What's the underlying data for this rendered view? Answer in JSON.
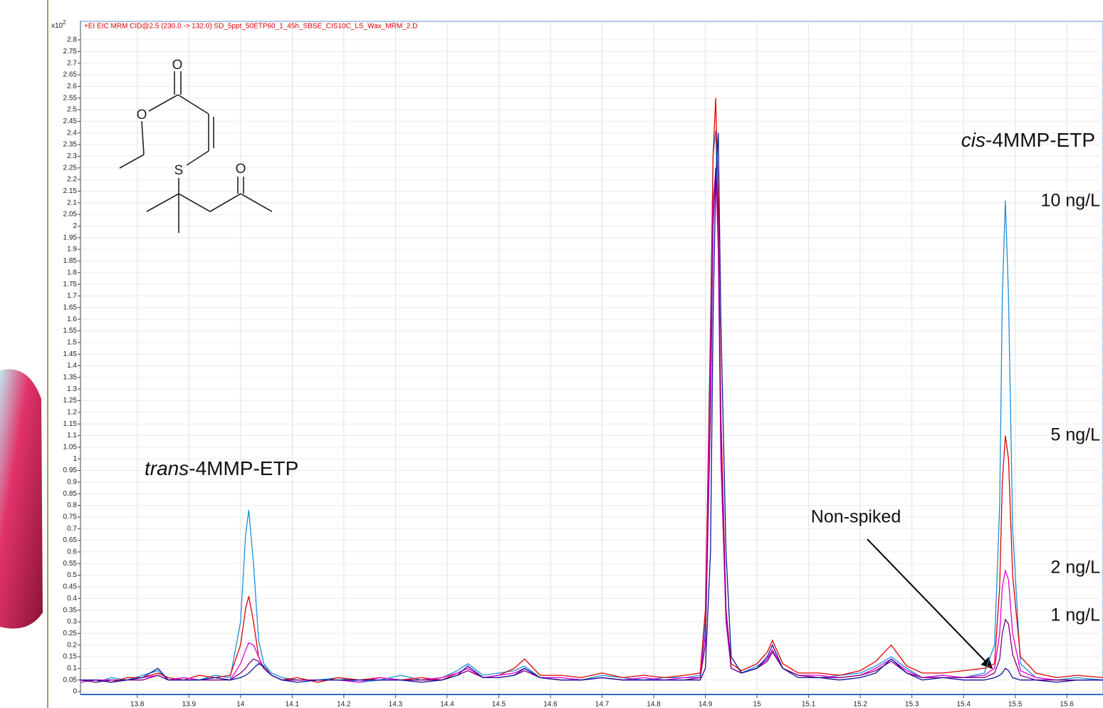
{
  "chart_data": {
    "type": "line",
    "title": "+EI EIC MRM CID@2.5 (230.0 -> 132.0) SD_5ppt_50ETP60_1_45h_SBSE_CIS10C_LS_Wax_MRM_2.D",
    "y_multiplier": {
      "base": "x10",
      "exponent": "2"
    },
    "annotations": [
      {
        "parts": [
          "trans",
          "-4MMP-ETP"
        ]
      },
      {
        "parts": [
          "cis",
          "-4MMP-ETP"
        ]
      }
    ],
    "structure_atoms": [
      "O",
      "O",
      "S",
      "O"
    ],
    "xlim": [
      13.69,
      15.67
    ],
    "xticks": [
      13.8,
      13.9,
      14,
      14.1,
      14.2,
      14.3,
      14.4,
      14.5,
      14.6,
      14.7,
      14.8,
      14.9,
      15,
      15.1,
      15.2,
      15.3,
      15.4,
      15.5,
      15.6
    ],
    "ylim": [
      0,
      2.8
    ],
    "yticks": [
      0,
      0.05,
      0.1,
      0.15,
      0.2,
      0.25,
      0.3,
      0.35,
      0.4,
      0.45,
      0.5,
      0.55,
      0.6,
      0.65,
      0.7,
      0.75,
      0.8,
      0.85,
      0.9,
      0.95,
      1,
      1.05,
      1.1,
      1.15,
      1.2,
      1.25,
      1.3,
      1.35,
      1.4,
      1.45,
      1.5,
      1.55,
      1.6,
      1.65,
      1.7,
      1.75,
      1.8,
      1.85,
      1.9,
      1.95,
      2,
      2.05,
      2.1,
      2.15,
      2.2,
      2.25,
      2.3,
      2.35,
      2.4,
      2.45,
      2.5,
      2.55,
      2.6,
      2.65,
      2.7,
      2.75,
      2.8
    ],
    "grid": true,
    "x": [
      13.69,
      13.72,
      13.75,
      13.78,
      13.81,
      13.84,
      13.86,
      13.89,
      13.92,
      13.95,
      13.98,
      14.0,
      14.01,
      14.016,
      14.025,
      14.035,
      14.045,
      14.06,
      14.08,
      14.11,
      14.15,
      14.19,
      14.23,
      14.27,
      14.31,
      14.35,
      14.39,
      14.42,
      14.44,
      14.47,
      14.5,
      14.53,
      14.55,
      14.58,
      14.62,
      14.66,
      14.7,
      14.74,
      14.78,
      14.82,
      14.86,
      14.89,
      14.9,
      14.91,
      14.915,
      14.92,
      14.925,
      14.93,
      14.94,
      14.95,
      14.97,
      15.0,
      15.02,
      15.03,
      15.05,
      15.08,
      15.12,
      15.16,
      15.2,
      15.23,
      15.26,
      15.29,
      15.32,
      15.36,
      15.4,
      15.44,
      15.46,
      15.47,
      15.475,
      15.481,
      15.487,
      15.495,
      15.51,
      15.54,
      15.58,
      15.62,
      15.67
    ],
    "series": [
      {
        "name": "10 ng/L",
        "color": "#1c8fd8",
        "values": [
          0.05,
          0.04,
          0.06,
          0.05,
          0.07,
          0.09,
          0.05,
          0.06,
          0.05,
          0.07,
          0.06,
          0.3,
          0.68,
          0.78,
          0.55,
          0.22,
          0.12,
          0.08,
          0.06,
          0.05,
          0.05,
          0.06,
          0.04,
          0.05,
          0.07,
          0.05,
          0.06,
          0.09,
          0.12,
          0.07,
          0.08,
          0.09,
          0.11,
          0.06,
          0.06,
          0.05,
          0.07,
          0.06,
          0.05,
          0.06,
          0.06,
          0.07,
          0.3,
          1.6,
          2.3,
          2.41,
          2.0,
          1.1,
          0.3,
          0.1,
          0.08,
          0.11,
          0.14,
          0.18,
          0.1,
          0.07,
          0.06,
          0.07,
          0.08,
          0.11,
          0.15,
          0.1,
          0.06,
          0.07,
          0.06,
          0.08,
          0.2,
          0.8,
          1.7,
          2.11,
          1.7,
          0.7,
          0.12,
          0.06,
          0.05,
          0.06,
          0.05
        ]
      },
      {
        "name": "5 ng/L",
        "color": "#e00000",
        "values": [
          0.05,
          0.05,
          0.04,
          0.06,
          0.06,
          0.08,
          0.06,
          0.05,
          0.07,
          0.06,
          0.07,
          0.2,
          0.36,
          0.41,
          0.3,
          0.15,
          0.1,
          0.07,
          0.05,
          0.06,
          0.04,
          0.06,
          0.05,
          0.06,
          0.05,
          0.06,
          0.05,
          0.08,
          0.1,
          0.06,
          0.07,
          0.1,
          0.14,
          0.07,
          0.07,
          0.06,
          0.08,
          0.06,
          0.07,
          0.06,
          0.07,
          0.08,
          0.35,
          1.5,
          2.3,
          2.55,
          2.1,
          1.2,
          0.35,
          0.12,
          0.09,
          0.12,
          0.17,
          0.22,
          0.12,
          0.08,
          0.08,
          0.07,
          0.09,
          0.13,
          0.2,
          0.11,
          0.08,
          0.08,
          0.09,
          0.1,
          0.12,
          0.45,
          0.9,
          1.1,
          1.0,
          0.5,
          0.15,
          0.08,
          0.06,
          0.07,
          0.06
        ]
      },
      {
        "name": "2 ng/L",
        "color": "#e000e0",
        "values": [
          0.04,
          0.05,
          0.05,
          0.05,
          0.06,
          0.07,
          0.05,
          0.06,
          0.05,
          0.06,
          0.05,
          0.12,
          0.18,
          0.21,
          0.2,
          0.15,
          0.1,
          0.07,
          0.05,
          0.05,
          0.05,
          0.05,
          0.04,
          0.06,
          0.05,
          0.05,
          0.06,
          0.08,
          0.1,
          0.06,
          0.07,
          0.08,
          0.1,
          0.06,
          0.06,
          0.05,
          0.06,
          0.05,
          0.06,
          0.05,
          0.06,
          0.06,
          0.25,
          1.4,
          2.1,
          2.24,
          1.9,
          1.0,
          0.3,
          0.1,
          0.08,
          0.1,
          0.14,
          0.18,
          0.1,
          0.07,
          0.07,
          0.06,
          0.07,
          0.1,
          0.14,
          0.09,
          0.06,
          0.07,
          0.06,
          0.07,
          0.1,
          0.25,
          0.45,
          0.52,
          0.48,
          0.25,
          0.09,
          0.06,
          0.05,
          0.05,
          0.05
        ]
      },
      {
        "name": "1 ng/L",
        "color": "#80007a",
        "values": [
          0.05,
          0.04,
          0.05,
          0.05,
          0.05,
          0.07,
          0.05,
          0.05,
          0.05,
          0.05,
          0.05,
          0.08,
          0.1,
          0.12,
          0.14,
          0.13,
          0.1,
          0.07,
          0.05,
          0.05,
          0.05,
          0.05,
          0.05,
          0.05,
          0.05,
          0.05,
          0.05,
          0.07,
          0.09,
          0.06,
          0.06,
          0.07,
          0.09,
          0.06,
          0.05,
          0.05,
          0.06,
          0.05,
          0.05,
          0.05,
          0.05,
          0.06,
          0.2,
          1.2,
          2.0,
          2.25,
          2.0,
          1.1,
          0.35,
          0.1,
          0.08,
          0.1,
          0.13,
          0.17,
          0.1,
          0.07,
          0.06,
          0.06,
          0.07,
          0.09,
          0.13,
          0.08,
          0.06,
          0.06,
          0.06,
          0.06,
          0.08,
          0.14,
          0.25,
          0.31,
          0.29,
          0.16,
          0.07,
          0.05,
          0.05,
          0.05,
          0.05
        ]
      },
      {
        "name": "Non-spiked",
        "color": "#12129c",
        "values": [
          0.05,
          0.05,
          0.04,
          0.05,
          0.06,
          0.1,
          0.05,
          0.05,
          0.05,
          0.06,
          0.05,
          0.06,
          0.07,
          0.08,
          0.1,
          0.12,
          0.11,
          0.07,
          0.05,
          0.04,
          0.05,
          0.05,
          0.05,
          0.05,
          0.05,
          0.04,
          0.05,
          0.07,
          0.11,
          0.06,
          0.06,
          0.07,
          0.1,
          0.06,
          0.05,
          0.05,
          0.06,
          0.05,
          0.05,
          0.05,
          0.05,
          0.05,
          0.1,
          0.6,
          1.6,
          2.2,
          2.4,
          1.6,
          0.6,
          0.15,
          0.08,
          0.1,
          0.15,
          0.2,
          0.1,
          0.06,
          0.06,
          0.05,
          0.06,
          0.08,
          0.14,
          0.08,
          0.05,
          0.06,
          0.05,
          0.05,
          0.06,
          0.07,
          0.08,
          0.1,
          0.09,
          0.06,
          0.05,
          0.05,
          0.04,
          0.05,
          0.05
        ]
      }
    ]
  }
}
